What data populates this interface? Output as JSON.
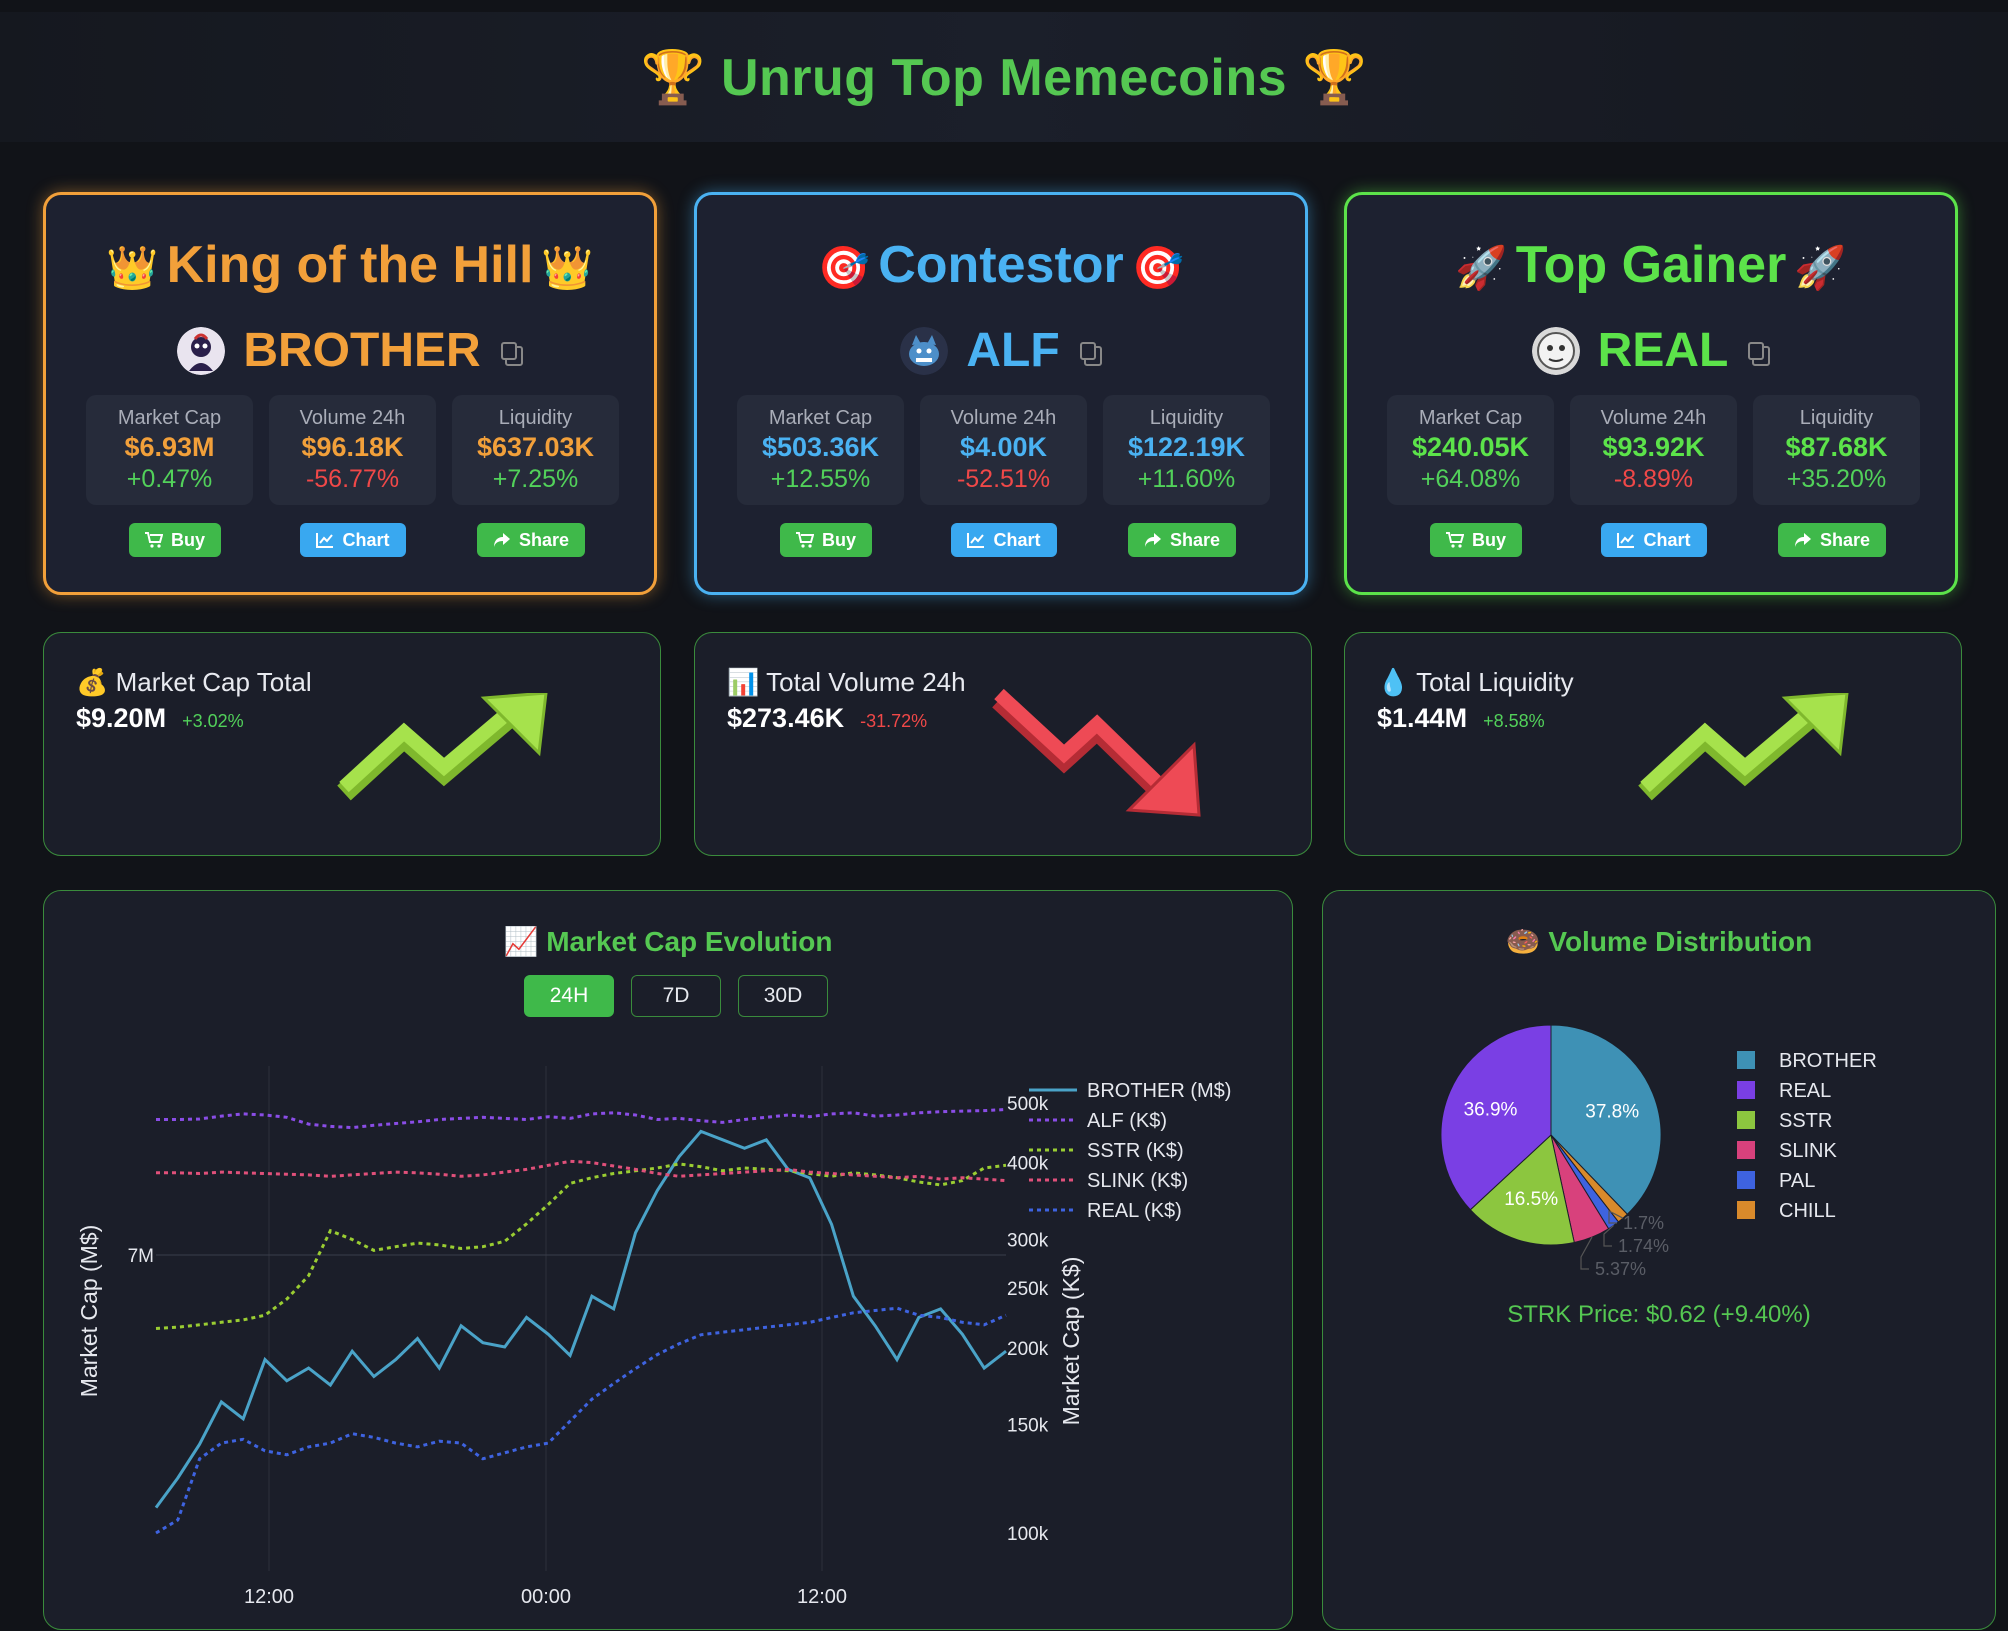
{
  "header": {
    "title": "🏆 Unrug Top Memecoins 🏆"
  },
  "cards": [
    {
      "title": "King of the Hill",
      "emoji": "👑",
      "color": "#f2a03a",
      "token": "BROTHER",
      "stats": [
        {
          "label": "Market Cap",
          "value": "$6.93M",
          "change": "+0.47%"
        },
        {
          "label": "Volume 24h",
          "value": "$96.18K",
          "change": "-56.77%"
        },
        {
          "label": "Liquidity",
          "value": "$637.03K",
          "change": "+7.25%"
        }
      ]
    },
    {
      "title": "Contestor",
      "emoji": "🎯",
      "color": "#4ab2f2",
      "token": "ALF",
      "stats": [
        {
          "label": "Market Cap",
          "value": "$503.36K",
          "change": "+12.55%"
        },
        {
          "label": "Volume 24h",
          "value": "$4.00K",
          "change": "-52.51%"
        },
        {
          "label": "Liquidity",
          "value": "$122.19K",
          "change": "+11.60%"
        }
      ]
    },
    {
      "title": "Top Gainer",
      "emoji": "🚀",
      "color": "#5ce34a",
      "token": "REAL",
      "stats": [
        {
          "label": "Market Cap",
          "value": "$240.05K",
          "change": "+64.08%"
        },
        {
          "label": "Volume 24h",
          "value": "$93.92K",
          "change": "-8.89%"
        },
        {
          "label": "Liquidity",
          "value": "$87.68K",
          "change": "+35.20%"
        }
      ]
    }
  ],
  "buttons": {
    "buy": "Buy",
    "chart": "Chart",
    "share": "Share"
  },
  "summary": [
    {
      "title": "💰 Market Cap Total",
      "value": "$9.20M",
      "change": "+3.02%",
      "trend": "up"
    },
    {
      "title": "📊 Total Volume 24h",
      "value": "$273.46K",
      "change": "-31.72%",
      "trend": "down"
    },
    {
      "title": "💧 Total Liquidity",
      "value": "$1.44M",
      "change": "+8.58%",
      "trend": "up"
    }
  ],
  "colors": {
    "accent": "#55c852",
    "positive": "#52d15a",
    "negative": "#f04848"
  },
  "chart_panel": {
    "title": "📈 Market Cap Evolution",
    "ranges": [
      "24H",
      "7D",
      "30D"
    ],
    "active_range": "24H"
  },
  "pie_panel": {
    "title": "🍩 Volume Distribution",
    "footer": "STRK Price: $0.62 (+9.40%)"
  },
  "chart_data": [
    {
      "type": "line",
      "ylabel_left": "Market Cap (M$)",
      "ylabel_right": "Market Cap (K$)",
      "x_ticks": [
        "12:00",
        "00:00",
        "12:00"
      ],
      "left_ticks": [
        "7M"
      ],
      "right_ticks": [
        "500k",
        "400k",
        "300k",
        "250k",
        "200k",
        "150k",
        "100k"
      ],
      "right_scale": "log",
      "grid": true,
      "legend_position": "top-right",
      "series": [
        {
          "name": "BROTHER (M$)",
          "color": "#4aa3c8",
          "style": "solid",
          "axis": "left",
          "values": [
            6.55,
            6.62,
            6.7,
            6.8,
            6.76,
            6.9,
            6.85,
            6.88,
            6.84,
            6.92,
            6.86,
            6.9,
            6.95,
            6.88,
            6.98,
            6.94,
            6.93,
            7.0,
            6.96,
            6.91,
            7.05,
            7.02,
            7.2,
            7.3,
            7.38,
            7.44,
            7.42,
            7.4,
            7.42,
            7.35,
            7.33,
            7.22,
            7.05,
            6.98,
            6.9,
            7.0,
            7.02,
            6.96,
            6.88,
            6.92
          ]
        },
        {
          "name": "ALF (K$)",
          "color": "#8a4de6",
          "style": "dotted",
          "axis": "right",
          "values": [
            470,
            470,
            471,
            476,
            480,
            478,
            474,
            462,
            458,
            456,
            460,
            463,
            466,
            470,
            472,
            474,
            472,
            470,
            475,
            472,
            480,
            482,
            478,
            470,
            472,
            468,
            465,
            470,
            474,
            478,
            475,
            480,
            482,
            476,
            478,
            482,
            484,
            485,
            486,
            488
          ]
        },
        {
          "name": "SSTR (K$)",
          "color": "#9acd32",
          "style": "dotted",
          "axis": "right",
          "values": [
            215,
            216,
            218,
            220,
            222,
            226,
            240,
            262,
            310,
            300,
            288,
            292,
            296,
            294,
            290,
            292,
            298,
            318,
            342,
            370,
            378,
            384,
            388,
            392,
            398,
            394,
            388,
            392,
            390,
            388,
            384,
            380,
            385,
            382,
            378,
            372,
            368,
            374,
            392,
            396
          ]
        },
        {
          "name": "SLINK (K$)",
          "color": "#e0507a",
          "style": "dotted",
          "axis": "right",
          "values": [
            385,
            385,
            384,
            386,
            385,
            384,
            383,
            382,
            380,
            382,
            384,
            386,
            385,
            383,
            380,
            382,
            386,
            390,
            396,
            402,
            400,
            395,
            390,
            384,
            380,
            382,
            384,
            386,
            388,
            390,
            386,
            384,
            382,
            380,
            378,
            380,
            376,
            378,
            376,
            374
          ]
        },
        {
          "name": "REAL (K$)",
          "color": "#3e63e0",
          "style": "dotted",
          "axis": "right",
          "values": [
            100,
            105,
            132,
            140,
            142,
            136,
            134,
            138,
            140,
            145,
            143,
            140,
            138,
            141,
            140,
            132,
            135,
            138,
            140,
            152,
            165,
            175,
            185,
            195,
            203,
            210,
            212,
            214,
            216,
            218,
            220,
            224,
            228,
            230,
            232,
            226,
            224,
            220,
            218,
            226
          ]
        }
      ]
    },
    {
      "type": "pie",
      "legend_position": "right",
      "slices": [
        {
          "name": "BROTHER",
          "value": 37.8,
          "label": "37.8%",
          "color": "#3e91b5"
        },
        {
          "name": "CHILL",
          "value": 1.7,
          "label": "1.7%",
          "color": "#d98a2b"
        },
        {
          "name": "PAL",
          "value": 1.74,
          "label": "1.74%",
          "color": "#3e63e0"
        },
        {
          "name": "SLINK",
          "value": 5.37,
          "label": "5.37%",
          "color": "#d8417c"
        },
        {
          "name": "SSTR",
          "value": 16.5,
          "label": "16.5%",
          "color": "#8cc63f"
        },
        {
          "name": "REAL",
          "value": 36.9,
          "label": "36.9%",
          "color": "#7a3fe4"
        }
      ],
      "legend_order": [
        "BROTHER",
        "REAL",
        "SSTR",
        "SLINK",
        "PAL",
        "CHILL"
      ]
    }
  ]
}
